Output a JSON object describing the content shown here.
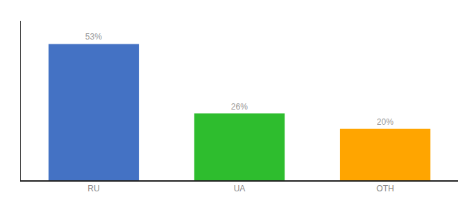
{
  "chart_data": {
    "type": "bar",
    "categories": [
      "RU",
      "UA",
      "OTH"
    ],
    "values": [
      53,
      26,
      20
    ],
    "value_labels": [
      "53%",
      "26%",
      "20%"
    ],
    "colors": [
      "#4472C4",
      "#2EBD2E",
      "#FFA500"
    ],
    "ylim": [
      0,
      62
    ],
    "data_labels": true,
    "tick_labels": "x",
    "grid": false
  }
}
